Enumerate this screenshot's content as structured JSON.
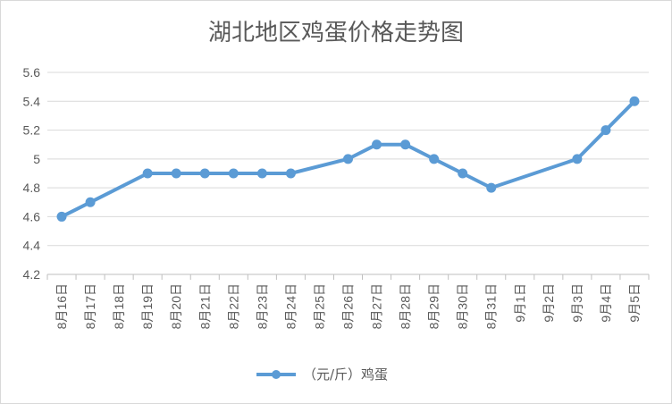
{
  "chart_data": {
    "type": "line",
    "title": "湖北地区鸡蛋价格走势图",
    "xlabel": "",
    "ylabel": "",
    "categories": [
      "8月16日",
      "8月17日",
      "8月18日",
      "8月19日",
      "8月20日",
      "8月21日",
      "8月22日",
      "8月23日",
      "8月24日",
      "8月25日",
      "8月26日",
      "8月27日",
      "8月28日",
      "8月29日",
      "8月30日",
      "8月31日",
      "9月1日",
      "9月2日",
      "9月3日",
      "9月4日",
      "9月5日"
    ],
    "series": [
      {
        "name": "（元/斤）鸡蛋",
        "values": [
          4.6,
          4.7,
          null,
          4.9,
          4.9,
          4.9,
          4.9,
          4.9,
          4.9,
          null,
          5.0,
          5.1,
          5.1,
          5.0,
          4.9,
          4.8,
          null,
          null,
          5.0,
          5.2,
          5.4
        ],
        "color": "#5b9bd5"
      }
    ],
    "ylim": [
      4.2,
      5.6
    ],
    "yticks": [
      "4.2",
      "4.4",
      "4.6",
      "4.8",
      "5",
      "5.2",
      "5.4",
      "5.6"
    ],
    "grid": "horizontal",
    "legend": "bottom"
  }
}
